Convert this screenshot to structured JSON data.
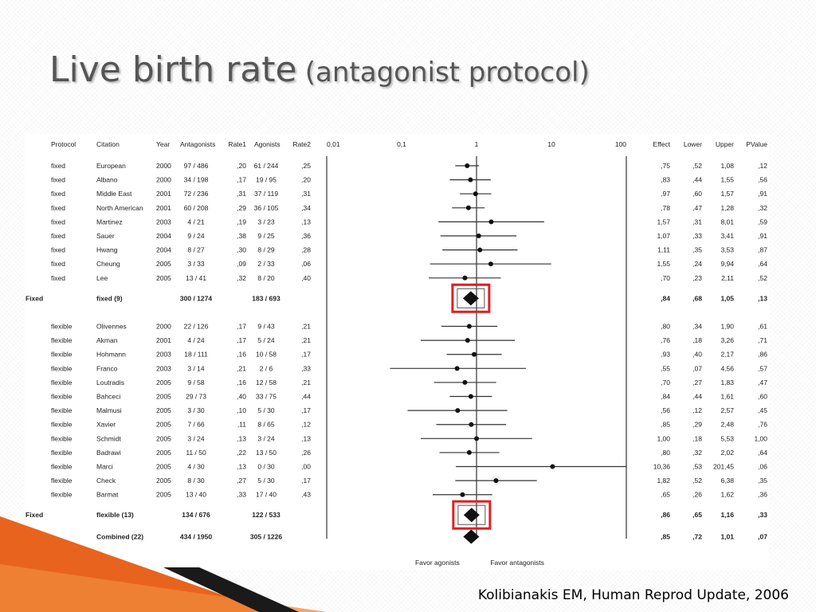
{
  "slide": {
    "title_main": "Live birth rate",
    "title_sub": "(antagonist protocol)",
    "citation": "Kolibianakis EM, Human Reprod Update, 2006"
  },
  "chart_data": {
    "type": "forest",
    "columns": [
      "Protocol",
      "Citation",
      "Year",
      "Antagonists",
      "Rate1",
      "Agonists",
      "Rate2",
      "Effect",
      "Lower",
      "Upper",
      "PValue"
    ],
    "x_scale": "log",
    "x_ticks": [
      0.01,
      0.1,
      1,
      10,
      100
    ],
    "x_tick_labels": [
      "0,01",
      "0,1",
      "1",
      "10",
      "100"
    ],
    "favor_left": "Favor agonists",
    "favor_right": "Favor antagonists",
    "highlight_color": "#e02020",
    "groups": [
      {
        "label": "Fixed",
        "studies": [
          {
            "protocol": "fixed",
            "citation": "European",
            "year": "2000",
            "antagonists": "97 / 486",
            "rate1": ",20",
            "agonists": "61 / 244",
            "rate2": ",25",
            "effect": 0.75,
            "lower": 0.52,
            "upper": 1.08,
            "effect_label": ",75",
            "lower_label": ",52",
            "upper_label": "1,08",
            "p_label": ",12"
          },
          {
            "protocol": "fixed",
            "citation": "Albano",
            "year": "2000",
            "antagonists": "34 / 198",
            "rate1": ",17",
            "agonists": "19 / 95",
            "rate2": ",20",
            "effect": 0.83,
            "lower": 0.44,
            "upper": 1.55,
            "effect_label": ",83",
            "lower_label": ",44",
            "upper_label": "1,55",
            "p_label": ",56"
          },
          {
            "protocol": "fixed",
            "citation": "Middle East",
            "year": "2001",
            "antagonists": "72 / 236",
            "rate1": ",31",
            "agonists": "37 / 119",
            "rate2": ",31",
            "effect": 0.97,
            "lower": 0.6,
            "upper": 1.57,
            "effect_label": ",97",
            "lower_label": ",60",
            "upper_label": "1,57",
            "p_label": ",91"
          },
          {
            "protocol": "fixed",
            "citation": "North American",
            "year": "2001",
            "antagonists": "60 / 208",
            "rate1": ",29",
            "agonists": "36 / 105",
            "rate2": ",34",
            "effect": 0.78,
            "lower": 0.47,
            "upper": 1.28,
            "effect_label": ",78",
            "lower_label": ",47",
            "upper_label": "1,28",
            "p_label": ",32"
          },
          {
            "protocol": "fixed",
            "citation": "Martinez",
            "year": "2003",
            "antagonists": "4 / 21",
            "rate1": ",19",
            "agonists": "3 / 23",
            "rate2": ",13",
            "effect": 1.57,
            "lower": 0.31,
            "upper": 8.01,
            "effect_label": "1,57",
            "lower_label": ",31",
            "upper_label": "8,01",
            "p_label": ",59"
          },
          {
            "protocol": "fixed",
            "citation": "Sauer",
            "year": "2004",
            "antagonists": "9 / 24",
            "rate1": ",38",
            "agonists": "9 / 25",
            "rate2": ",36",
            "effect": 1.07,
            "lower": 0.33,
            "upper": 3.41,
            "effect_label": "1,07",
            "lower_label": ",33",
            "upper_label": "3,41",
            "p_label": ",91"
          },
          {
            "protocol": "fixed",
            "citation": "Hwang",
            "year": "2004",
            "antagonists": "8 / 27",
            "rate1": ",30",
            "agonists": "8 / 29",
            "rate2": ",28",
            "effect": 1.11,
            "lower": 0.35,
            "upper": 3.53,
            "effect_label": "1,11",
            "lower_label": ",35",
            "upper_label": "3,53",
            "p_label": ",87"
          },
          {
            "protocol": "fixed",
            "citation": "Cheung",
            "year": "2005",
            "antagonists": "3 / 33",
            "rate1": ",09",
            "agonists": "2 / 33",
            "rate2": ",06",
            "effect": 1.55,
            "lower": 0.24,
            "upper": 9.94,
            "effect_label": "1,55",
            "lower_label": ",24",
            "upper_label": "9,94",
            "p_label": ",64"
          },
          {
            "protocol": "fixed",
            "citation": "Lee",
            "year": "2005",
            "antagonists": "13 / 41",
            "rate1": ",32",
            "agonists": "8 / 20",
            "rate2": ",40",
            "effect": 0.7,
            "lower": 0.23,
            "upper": 2.11,
            "effect_label": ",70",
            "lower_label": ",23",
            "upper_label": "2,11",
            "p_label": ",52"
          }
        ],
        "summary": {
          "protocol": "Fixed",
          "citation": "fixed (9)",
          "antagonists": "300 / 1274",
          "agonists": "183 / 693",
          "effect": 0.84,
          "lower": 0.68,
          "upper": 1.05,
          "effect_label": ",84",
          "lower_label": ",68",
          "upper_label": "1,05",
          "p_label": ",13",
          "highlighted": true
        }
      },
      {
        "label": "Flexible",
        "studies": [
          {
            "protocol": "flexible",
            "citation": "Olivennes",
            "year": "2000",
            "antagonists": "22 / 126",
            "rate1": ",17",
            "agonists": "9 / 43",
            "rate2": ",21",
            "effect": 0.8,
            "lower": 0.34,
            "upper": 1.9,
            "effect_label": ",80",
            "lower_label": ",34",
            "upper_label": "1,90",
            "p_label": ",61"
          },
          {
            "protocol": "flexible",
            "citation": "Akman",
            "year": "2001",
            "antagonists": "4 / 24",
            "rate1": ",17",
            "agonists": "5 / 24",
            "rate2": ",21",
            "effect": 0.76,
            "lower": 0.18,
            "upper": 3.26,
            "effect_label": ",76",
            "lower_label": ",18",
            "upper_label": "3,26",
            "p_label": ",71"
          },
          {
            "protocol": "flexible",
            "citation": "Hohmann",
            "year": "2003",
            "antagonists": "18 / 111",
            "rate1": ",16",
            "agonists": "10 / 58",
            "rate2": ",17",
            "effect": 0.93,
            "lower": 0.4,
            "upper": 2.17,
            "effect_label": ",93",
            "lower_label": ",40",
            "upper_label": "2,17",
            "p_label": ",86"
          },
          {
            "protocol": "flexible",
            "citation": "Franco",
            "year": "2003",
            "antagonists": "3 / 14",
            "rate1": ",21",
            "agonists": "2 / 6",
            "rate2": ",33",
            "effect": 0.55,
            "lower": 0.07,
            "upper": 4.56,
            "effect_label": ",55",
            "lower_label": ",07",
            "upper_label": "4,56",
            "p_label": ",57"
          },
          {
            "protocol": "flexible",
            "citation": "Loutradis",
            "year": "2005",
            "antagonists": "9 / 58",
            "rate1": ",16",
            "agonists": "12 / 58",
            "rate2": ",21",
            "effect": 0.7,
            "lower": 0.27,
            "upper": 1.83,
            "effect_label": ",70",
            "lower_label": ",27",
            "upper_label": "1,83",
            "p_label": ",47"
          },
          {
            "protocol": "flexible",
            "citation": "Bahceci",
            "year": "2005",
            "antagonists": "29 / 73",
            "rate1": ",40",
            "agonists": "33 / 75",
            "rate2": ",44",
            "effect": 0.84,
            "lower": 0.44,
            "upper": 1.61,
            "effect_label": ",84",
            "lower_label": ",44",
            "upper_label": "1,61",
            "p_label": ",60"
          },
          {
            "protocol": "flexible",
            "citation": "Malmusi",
            "year": "2005",
            "antagonists": "3 / 30",
            "rate1": ",10",
            "agonists": "5 / 30",
            "rate2": ",17",
            "effect": 0.56,
            "lower": 0.12,
            "upper": 2.57,
            "effect_label": ",56",
            "lower_label": ",12",
            "upper_label": "2,57",
            "p_label": ",45"
          },
          {
            "protocol": "flexible",
            "citation": "Xavier",
            "year": "2005",
            "antagonists": "7 / 66",
            "rate1": ",11",
            "agonists": "8 / 65",
            "rate2": ",12",
            "effect": 0.85,
            "lower": 0.29,
            "upper": 2.48,
            "effect_label": ",85",
            "lower_label": ",29",
            "upper_label": "2,48",
            "p_label": ",76"
          },
          {
            "protocol": "flexible",
            "citation": "Schmidt",
            "year": "2005",
            "antagonists": "3 / 24",
            "rate1": ",13",
            "agonists": "3 / 24",
            "rate2": ",13",
            "effect": 1.0,
            "lower": 0.18,
            "upper": 5.53,
            "effect_label": "1,00",
            "lower_label": ",18",
            "upper_label": "5,53",
            "p_label": "1,00"
          },
          {
            "protocol": "flexible",
            "citation": "Badrawi",
            "year": "2005",
            "antagonists": "11 / 50",
            "rate1": ",22",
            "agonists": "13 / 50",
            "rate2": ",26",
            "effect": 0.8,
            "lower": 0.32,
            "upper": 2.02,
            "effect_label": ",80",
            "lower_label": ",32",
            "upper_label": "2,02",
            "p_label": ",64"
          },
          {
            "protocol": "flexible",
            "citation": "Marci",
            "year": "2005",
            "antagonists": "4 / 30",
            "rate1": ",13",
            "agonists": "0 / 30",
            "rate2": ",00",
            "effect": 10.36,
            "lower": 0.53,
            "upper": 201.45,
            "effect_label": "10,36",
            "lower_label": ",53",
            "upper_label": "201,45",
            "p_label": ",06"
          },
          {
            "protocol": "flexible",
            "citation": "Check",
            "year": "2005",
            "antagonists": "8 / 30",
            "rate1": ",27",
            "agonists": "5 / 30",
            "rate2": ",17",
            "effect": 1.82,
            "lower": 0.52,
            "upper": 6.38,
            "effect_label": "1,82",
            "lower_label": ",52",
            "upper_label": "6,38",
            "p_label": ",35"
          },
          {
            "protocol": "flexible",
            "citation": "Barmat",
            "year": "2005",
            "antagonists": "13 / 40",
            "rate1": ",33",
            "agonists": "17 / 40",
            "rate2": ",43",
            "effect": 0.65,
            "lower": 0.26,
            "upper": 1.62,
            "effect_label": ",65",
            "lower_label": ",26",
            "upper_label": "1,62",
            "p_label": ",36"
          }
        ],
        "summary": {
          "protocol": "Fixed",
          "citation": "flexible (13)",
          "antagonists": "134 / 676",
          "agonists": "122 / 533",
          "effect": 0.86,
          "lower": 0.65,
          "upper": 1.16,
          "effect_label": ",86",
          "lower_label": ",65",
          "upper_label": "1,16",
          "p_label": ",33",
          "highlighted": true
        }
      }
    ],
    "overall": {
      "protocol": "Fixed",
      "citation": "Combined (22)",
      "antagonists": "434 / 1950",
      "agonists": "305 / 1226",
      "effect": 0.85,
      "lower": 0.72,
      "upper": 1.01,
      "effect_label": ",85",
      "lower_label": ",72",
      "upper_label": "1,01",
      "p_label": ",07",
      "highlighted": false
    }
  }
}
